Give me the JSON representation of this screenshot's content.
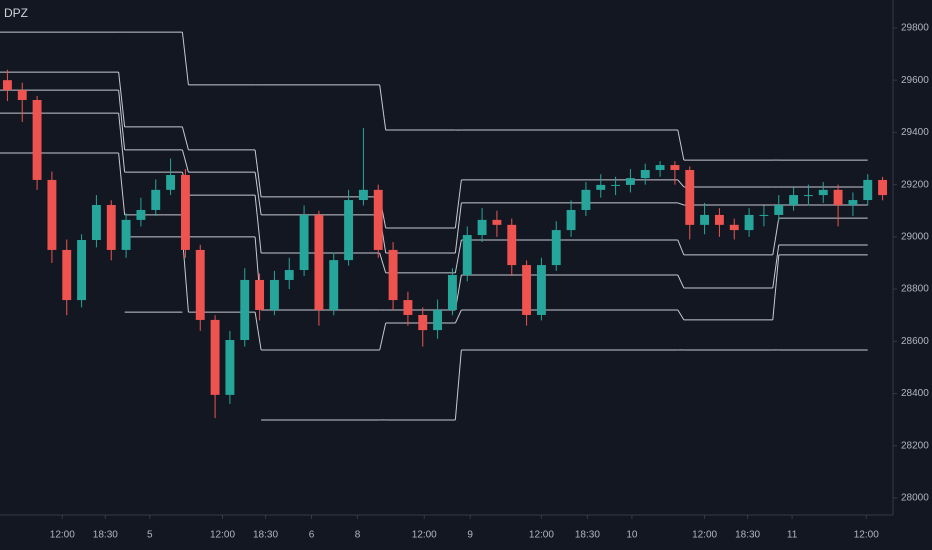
{
  "chart_data": {
    "type": "candlestick",
    "title": "DPZ",
    "xlim": [
      0,
      60
    ],
    "ylim": [
      27935,
      29907
    ],
    "yticks": [
      28000,
      28200,
      28400,
      28600,
      28800,
      29000,
      29200,
      29400,
      29600,
      29800
    ],
    "xticks": [
      {
        "value": 4.2,
        "label": "12:00"
      },
      {
        "value": 7.1,
        "label": "18:30"
      },
      {
        "value": 10.1,
        "label": "5"
      },
      {
        "value": 15,
        "label": "12:00"
      },
      {
        "value": 17.9,
        "label": "18:30"
      },
      {
        "value": 21,
        "label": "6"
      },
      {
        "value": 24.1,
        "label": "8"
      },
      {
        "value": 28.6,
        "label": "12:00"
      },
      {
        "value": 31.7,
        "label": "9"
      },
      {
        "value": 36.5,
        "label": "12:00"
      },
      {
        "value": 39.6,
        "label": "18:30"
      },
      {
        "value": 42.6,
        "label": "10"
      },
      {
        "value": 47.5,
        "label": "12:00"
      },
      {
        "value": 50.4,
        "label": "18:30"
      },
      {
        "value": 53.4,
        "label": "11"
      },
      {
        "value": 58.4,
        "label": "12:00"
      }
    ],
    "up_color": "#26a69a",
    "down_color": "#ef5350",
    "open": [
      29600,
      29562,
      29524,
      29218,
      28950,
      28758,
      28988,
      29122,
      28950,
      29065,
      29103,
      29180,
      29237,
      28950,
      28682,
      28395,
      28605,
      28835,
      28720,
      28835,
      28873,
      29084,
      28720,
      28911,
      29141,
      29180,
      28950,
      28758,
      28701,
      28643,
      28720,
      28854,
      29007,
      29065,
      29046,
      28892,
      28701,
      28892,
      29026,
      29103,
      29180,
      29199,
      29199,
      29225,
      29256,
      29275,
      29256,
      29046,
      29084,
      29046,
      29026,
      29084,
      29084,
      29122,
      29160,
      29160,
      29180,
      29122,
      29141,
      29218
    ],
    "high": [
      29640,
      29590,
      29540,
      29250,
      28990,
      29010,
      29160,
      29140,
      29090,
      29150,
      29220,
      29300,
      29260,
      28970,
      28700,
      28640,
      28880,
      28860,
      28870,
      28920,
      29120,
      29100,
      28940,
      29180,
      29417,
      29200,
      28980,
      28790,
      28730,
      28760,
      28880,
      29040,
      29110,
      29100,
      29070,
      28910,
      28920,
      29060,
      29140,
      29210,
      29240,
      29230,
      29260,
      29280,
      29290,
      29290,
      29270,
      29130,
      29110,
      29070,
      29110,
      29120,
      29160,
      29190,
      29200,
      29210,
      29200,
      29170,
      29240,
      29230
    ],
    "low": [
      29520,
      29440,
      29180,
      28900,
      28700,
      28730,
      28960,
      28910,
      28920,
      29040,
      29080,
      29160,
      28920,
      28640,
      28306,
      28360,
      28580,
      28680,
      28700,
      28800,
      28850,
      28660,
      28700,
      28890,
      29120,
      28920,
      28720,
      28660,
      28580,
      28610,
      28700,
      28830,
      28980,
      29000,
      28850,
      28660,
      28680,
      28870,
      29000,
      29080,
      29150,
      29160,
      29170,
      29200,
      29230,
      29200,
      28990,
      29010,
      29000,
      28990,
      29000,
      29040,
      29060,
      29100,
      29120,
      29130,
      29040,
      29080,
      29120,
      29140
    ],
    "close": [
      29562,
      29524,
      29218,
      28950,
      28758,
      28988,
      29122,
      28950,
      29065,
      29103,
      29180,
      29237,
      28950,
      28682,
      28395,
      28605,
      28835,
      28720,
      28835,
      28873,
      29084,
      28720,
      28911,
      29141,
      29180,
      28950,
      28758,
      28701,
      28643,
      28720,
      28854,
      29007,
      29065,
      29046,
      28892,
      28701,
      28892,
      29026,
      29103,
      29180,
      29199,
      29199,
      29225,
      29256,
      29275,
      29256,
      29046,
      29084,
      29046,
      29026,
      29084,
      29084,
      29122,
      29160,
      29160,
      29180,
      29122,
      29141,
      29218,
      29160
    ],
    "pivot_line_color": "#c7c9d1",
    "pivot_edges": [
      0,
      8.2,
      12.5,
      17.4,
      25.8,
      30.9,
      45.9,
      52.3,
      58.7
    ],
    "pivot_lines": [
      [
        29784,
        29784,
        29582,
        29582,
        29409,
        29409,
        29294,
        29294
      ],
      [
        29631,
        29421,
        29333,
        29153,
        29034,
        29218,
        29191,
        29191
      ],
      [
        29562,
        29333,
        29248,
        29084,
        28938,
        29130,
        29122,
        29122
      ],
      [
        29474,
        29248,
        29160,
        28938,
        28862,
        28988,
        28931,
        29072
      ],
      [
        29321,
        29084,
        29000,
        28720,
        28720,
        28854,
        28804,
        28969
      ],
      [
        null,
        29000,
        28712,
        28567,
        28670,
        28720,
        28682,
        28931
      ],
      [
        null,
        28712,
        null,
        28299,
        28299,
        28567,
        28567,
        28567
      ]
    ]
  }
}
